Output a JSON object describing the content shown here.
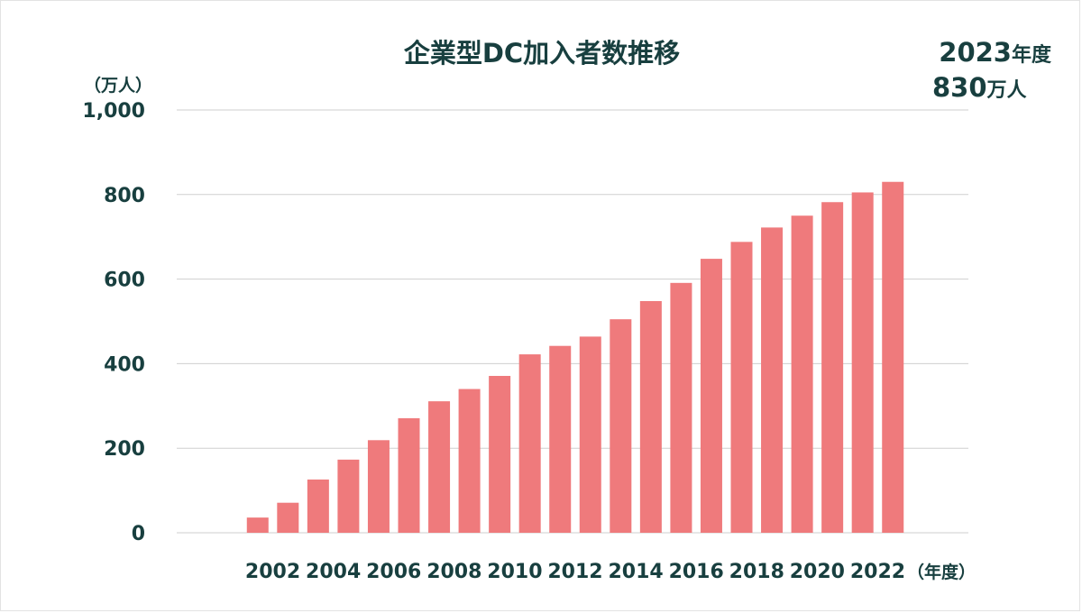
{
  "colors": {
    "bar": "#ef7a7c",
    "text": "#183f3f",
    "grid": "#cfcfcf",
    "background": "#ffffff"
  },
  "chart_data": {
    "type": "bar",
    "title": "企業型DC加入者数推移",
    "ylabel": "（万人）",
    "xlabel": "（年度）",
    "ylim": [
      0,
      1000
    ],
    "yticks": [
      0,
      200,
      400,
      600,
      800,
      1000
    ],
    "ytick_labels": [
      "0",
      "200",
      "400",
      "600",
      "800",
      "1,000"
    ],
    "grid": true,
    "categories": [
      "2002",
      "2003",
      "2004",
      "2005",
      "2006",
      "2007",
      "2008",
      "2009",
      "2010",
      "2011",
      "2012",
      "2013",
      "2014",
      "2015",
      "2016",
      "2017",
      "2018",
      "2019",
      "2020",
      "2021",
      "2022",
      "2023"
    ],
    "xtick_labels": [
      "2002",
      "",
      "2004",
      "",
      "2006",
      "",
      "2008",
      "",
      "2010",
      "",
      "2012",
      "",
      "2014",
      "",
      "2016",
      "",
      "2018",
      "",
      "2020",
      "",
      "2022",
      ""
    ],
    "values": [
      36,
      71,
      126,
      173,
      219,
      271,
      311,
      340,
      371,
      422,
      442,
      464,
      505,
      548,
      591,
      648,
      688,
      722,
      750,
      782,
      805,
      830
    ],
    "annotation": {
      "line1_number": "2023",
      "line1_suffix": "年度",
      "line2_number": "830",
      "line2_suffix": "万人"
    }
  }
}
